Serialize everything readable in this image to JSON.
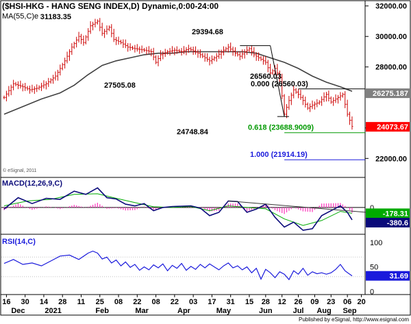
{
  "header": {
    "title": "($HSI-HKG - HANG SENG INDEX,D) Dynamic,0:00-24:00",
    "ma_label": "MA(55,C)e",
    "ma_value": "31183.35"
  },
  "watermark": "© eSignal, 2011",
  "footer": "Published by eSignal, http://www.esignal.com",
  "colors": {
    "price_bar": "#cc0000",
    "ma_line": "#404040",
    "macd_line": "#0a0a7a",
    "signal_line": "#00aa00",
    "histogram": "#ff3fc0",
    "rsi_line": "#1a1adc",
    "fib_0": "#000000",
    "fib_618": "#009900",
    "fib_1000": "#1a1adc",
    "tag_red": "#ff0000",
    "tag_grey": "#808080",
    "tag_green": "#00aa00",
    "tag_navy": "#0a0a7a",
    "tag_blue": "#1a1adc"
  },
  "chart_data": [
    {
      "type": "candlestick",
      "name": "Hang Seng Index daily",
      "ylim": [
        20800,
        32300
      ],
      "yticks": [
        {
          "label": "32000.00",
          "v": 32000
        },
        {
          "label": "30000.00",
          "v": 30000
        },
        {
          "label": "28000.00",
          "v": 28000
        },
        {
          "label": "24000.00",
          "v": 24000
        },
        {
          "label": "22000.00",
          "v": 22000
        }
      ],
      "price_path": [
        [
          0,
          26000
        ],
        [
          4,
          26900
        ],
        [
          8,
          26700
        ],
        [
          11,
          26500
        ],
        [
          14,
          26600
        ],
        [
          18,
          26900
        ],
        [
          22,
          27400
        ],
        [
          26,
          28400
        ],
        [
          29,
          29300
        ],
        [
          32,
          30000
        ],
        [
          34,
          29600
        ],
        [
          37,
          30700
        ],
        [
          40,
          31000
        ],
        [
          42,
          30200
        ],
        [
          45,
          30600
        ],
        [
          47,
          29800
        ],
        [
          50,
          29600
        ],
        [
          53,
          29300
        ],
        [
          56,
          29200
        ],
        [
          60,
          29100
        ],
        [
          63,
          29000
        ],
        [
          65,
          28300
        ],
        [
          67,
          28800
        ],
        [
          70,
          29000
        ],
        [
          73,
          29100
        ],
        [
          76,
          29000
        ],
        [
          79,
          29200
        ],
        [
          83,
          28900
        ],
        [
          86,
          28600
        ],
        [
          88,
          28400
        ],
        [
          91,
          28700
        ],
        [
          94,
          29100
        ],
        [
          96,
          29300
        ],
        [
          99,
          28900
        ],
        [
          101,
          28700
        ],
        [
          103,
          29000
        ],
        [
          105,
          29200
        ],
        [
          107,
          28800
        ],
        [
          110,
          28500
        ],
        [
          112,
          28300
        ],
        [
          114,
          27600
        ],
        [
          116,
          27900
        ],
        [
          118,
          27300
        ],
        [
          120,
          24900
        ],
        [
          122,
          25800
        ],
        [
          124,
          26500
        ],
        [
          126,
          26200
        ],
        [
          128,
          25800
        ],
        [
          130,
          25300
        ],
        [
          132,
          25500
        ],
        [
          135,
          25700
        ],
        [
          138,
          26200
        ],
        [
          140,
          25700
        ],
        [
          143,
          26000
        ],
        [
          145,
          26200
        ],
        [
          147,
          24900
        ],
        [
          149,
          24100
        ]
      ],
      "ma": [
        [
          0,
          24900
        ],
        [
          8,
          25400
        ],
        [
          16,
          25900
        ],
        [
          24,
          26300
        ],
        [
          30,
          26800
        ],
        [
          36,
          27500
        ],
        [
          42,
          28100
        ],
        [
          48,
          28400
        ],
        [
          54,
          28600
        ],
        [
          60,
          28800
        ],
        [
          66,
          28900
        ],
        [
          72,
          28900
        ],
        [
          78,
          29000
        ],
        [
          84,
          29000
        ],
        [
          90,
          29000
        ],
        [
          96,
          29000
        ],
        [
          102,
          29000
        ],
        [
          108,
          28900
        ],
        [
          114,
          28600
        ],
        [
          120,
          28300
        ],
        [
          126,
          27900
        ],
        [
          132,
          27400
        ],
        [
          138,
          27000
        ],
        [
          144,
          26700
        ],
        [
          149,
          26400
        ]
      ],
      "annotations": [
        {
          "label": "31183.35",
          "i": 40,
          "v": 31183.35
        },
        {
          "label": "29394.68",
          "i": 106,
          "v": 29394.68
        },
        {
          "label": "27505.08",
          "i": 65,
          "v": 27505.08
        },
        {
          "label": "26560.03",
          "i": 145,
          "v": 26560.03
        },
        {
          "label": "24748.84",
          "i": 120,
          "v": 24748.84
        }
      ],
      "fib_levels": [
        {
          "label": "0.000 (26560.03)",
          "v": 26560.03
        },
        {
          "label": "0.618 (23688.9009)",
          "v": 23688.9009
        },
        {
          "label": "1.000 (21914.19)",
          "v": 21914.19
        }
      ],
      "price_tags": [
        {
          "label": "26275.187",
          "v": 26275.187
        },
        {
          "label": "24073.67",
          "v": 24073.67
        }
      ]
    },
    {
      "type": "line",
      "name": "MACD",
      "label": "MACD(12,26,9,C)",
      "ylim": [
        -800,
        900
      ],
      "yticks": [
        {
          "label": "0",
          "v": 0
        }
      ],
      "macd": [
        [
          0,
          -50
        ],
        [
          6,
          300
        ],
        [
          12,
          120
        ],
        [
          18,
          280
        ],
        [
          24,
          250
        ],
        [
          30,
          500
        ],
        [
          35,
          400
        ],
        [
          40,
          600
        ],
        [
          44,
          300
        ],
        [
          48,
          260
        ],
        [
          52,
          100
        ],
        [
          56,
          50
        ],
        [
          60,
          120
        ],
        [
          64,
          -100
        ],
        [
          68,
          0
        ],
        [
          72,
          30
        ],
        [
          76,
          40
        ],
        [
          80,
          50
        ],
        [
          84,
          -20
        ],
        [
          88,
          -250
        ],
        [
          92,
          -150
        ],
        [
          96,
          200
        ],
        [
          100,
          180
        ],
        [
          104,
          -150
        ],
        [
          108,
          -50
        ],
        [
          112,
          100
        ],
        [
          116,
          -300
        ],
        [
          120,
          -600
        ],
        [
          124,
          -450
        ],
        [
          128,
          -700
        ],
        [
          132,
          -650
        ],
        [
          136,
          -250
        ],
        [
          140,
          -100
        ],
        [
          144,
          50
        ],
        [
          147,
          -150
        ],
        [
          149,
          -380
        ]
      ],
      "signal": [
        [
          0,
          50
        ],
        [
          10,
          200
        ],
        [
          20,
          250
        ],
        [
          30,
          400
        ],
        [
          40,
          420
        ],
        [
          48,
          280
        ],
        [
          56,
          150
        ],
        [
          64,
          20
        ],
        [
          72,
          0
        ],
        [
          80,
          30
        ],
        [
          88,
          -100
        ],
        [
          96,
          50
        ],
        [
          104,
          0
        ],
        [
          112,
          -40
        ],
        [
          120,
          -350
        ],
        [
          128,
          -550
        ],
        [
          136,
          -400
        ],
        [
          144,
          -120
        ],
        [
          149,
          -178
        ]
      ],
      "trendline": [
        [
          96,
          200
        ],
        [
          150,
          -150
        ]
      ],
      "tags": [
        {
          "label": "-178.31",
          "v": -178.31
        },
        {
          "label": "-380.6",
          "v": -380.6
        }
      ]
    },
    {
      "type": "line",
      "name": "RSI",
      "label": "RSI(14,C)",
      "ylim": [
        -5,
        115
      ],
      "yticks": [
        {
          "label": "100",
          "v": 100
        },
        {
          "label": "50",
          "v": 50
        },
        {
          "label": "0",
          "v": 0
        }
      ],
      "rsi": [
        [
          0,
          57
        ],
        [
          4,
          65
        ],
        [
          8,
          55
        ],
        [
          12,
          58
        ],
        [
          16,
          52
        ],
        [
          20,
          62
        ],
        [
          24,
          72
        ],
        [
          28,
          74
        ],
        [
          32,
          65
        ],
        [
          36,
          78
        ],
        [
          38,
          82
        ],
        [
          40,
          78
        ],
        [
          42,
          66
        ],
        [
          44,
          70
        ],
        [
          46,
          58
        ],
        [
          48,
          64
        ],
        [
          50,
          52
        ],
        [
          52,
          60
        ],
        [
          54,
          49
        ],
        [
          56,
          55
        ],
        [
          58,
          43
        ],
        [
          60,
          50
        ],
        [
          62,
          44
        ],
        [
          64,
          54
        ],
        [
          66,
          48
        ],
        [
          68,
          56
        ],
        [
          70,
          42
        ],
        [
          72,
          53
        ],
        [
          74,
          47
        ],
        [
          76,
          57
        ],
        [
          78,
          43
        ],
        [
          80,
          51
        ],
        [
          82,
          45
        ],
        [
          84,
          55
        ],
        [
          86,
          48
        ],
        [
          88,
          56
        ],
        [
          90,
          50
        ],
        [
          92,
          44
        ],
        [
          94,
          52
        ],
        [
          96,
          58
        ],
        [
          98,
          48
        ],
        [
          100,
          52
        ],
        [
          102,
          44
        ],
        [
          104,
          50
        ],
        [
          106,
          38
        ],
        [
          108,
          47
        ],
        [
          110,
          25
        ],
        [
          112,
          45
        ],
        [
          114,
          38
        ],
        [
          116,
          28
        ],
        [
          118,
          40
        ],
        [
          120,
          35
        ],
        [
          122,
          24
        ],
        [
          124,
          42
        ],
        [
          126,
          35
        ],
        [
          128,
          47
        ],
        [
          130,
          33
        ],
        [
          132,
          40
        ],
        [
          134,
          36
        ],
        [
          136,
          38
        ],
        [
          138,
          35
        ],
        [
          140,
          38
        ],
        [
          142,
          45
        ],
        [
          144,
          55
        ],
        [
          146,
          42
        ],
        [
          148,
          35
        ],
        [
          149,
          31.69
        ]
      ],
      "tags": [
        {
          "label": "31.69",
          "v": 31.69
        }
      ]
    }
  ],
  "x_axis": {
    "day_ticks": [
      {
        "label": "16",
        "i": 1
      },
      {
        "label": "30",
        "i": 9
      },
      {
        "label": "14",
        "i": 17
      },
      {
        "label": "28",
        "i": 25
      },
      {
        "label": "11",
        "i": 33
      },
      {
        "label": "25",
        "i": 41
      },
      {
        "label": "08",
        "i": 49
      },
      {
        "label": "22",
        "i": 57
      },
      {
        "label": "08",
        "i": 65
      },
      {
        "label": "22",
        "i": 73
      },
      {
        "label": "03",
        "i": 81
      },
      {
        "label": "17",
        "i": 89
      },
      {
        "label": "31",
        "i": 97
      },
      {
        "label": "15",
        "i": 105
      },
      {
        "label": "28",
        "i": 112
      },
      {
        "label": "12",
        "i": 119
      },
      {
        "label": "26",
        "i": 126
      },
      {
        "label": "09",
        "i": 133
      },
      {
        "label": "23",
        "i": 140
      },
      {
        "label": "06",
        "i": 147
      },
      {
        "label": "20",
        "i": 153
      }
    ],
    "month_labels": [
      {
        "label": "Dec",
        "i": 6
      },
      {
        "label": "2021",
        "i": 21
      },
      {
        "label": "Feb",
        "i": 42
      },
      {
        "label": "Mar",
        "i": 59
      },
      {
        "label": "Apr",
        "i": 77
      },
      {
        "label": "May",
        "i": 94
      },
      {
        "label": "Jun",
        "i": 112
      },
      {
        "label": "Jul",
        "i": 126
      },
      {
        "label": "Aug",
        "i": 137
      },
      {
        "label": "Sep",
        "i": 148
      }
    ]
  }
}
